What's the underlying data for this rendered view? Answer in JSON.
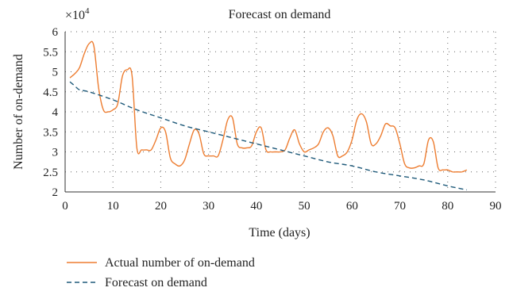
{
  "chart_data": {
    "type": "line",
    "title": "Forecast on demand",
    "xlabel": "Time (days)",
    "ylabel": "Number of on-demand",
    "y_multiplier": "×10",
    "y_multiplier_exponent": "4",
    "xlim": [
      0,
      90
    ],
    "ylim": [
      2,
      6
    ],
    "x_ticks": [
      0,
      10,
      20,
      30,
      40,
      50,
      60,
      70,
      80,
      90
    ],
    "y_ticks": [
      2,
      2.5,
      3,
      3.5,
      4,
      4.5,
      5,
      5.5,
      6
    ],
    "grid": "dotted",
    "legend_position": "bottom",
    "series": [
      {
        "name": "Actual number of on-demand",
        "color": "#ed7d31",
        "style": "solid",
        "x": [
          1,
          2,
          3,
          4,
          5,
          6,
          7,
          8,
          9,
          10,
          11,
          12,
          13,
          14,
          15,
          16,
          17,
          18,
          19,
          20,
          21,
          22,
          23,
          24,
          25,
          26,
          27,
          28,
          29,
          30,
          31,
          32,
          33,
          34,
          35,
          36,
          37,
          38,
          39,
          40,
          41,
          42,
          43,
          44,
          45,
          46,
          47,
          48,
          49,
          50,
          51,
          52,
          53,
          54,
          55,
          56,
          57,
          58,
          59,
          60,
          61,
          62,
          63,
          64,
          65,
          66,
          67,
          68,
          69,
          70,
          71,
          72,
          73,
          74,
          75,
          76,
          77,
          78,
          79,
          80,
          81,
          82,
          83,
          84
        ],
        "y": [
          4.85,
          4.95,
          5.1,
          5.45,
          5.7,
          5.65,
          4.6,
          4.05,
          4.0,
          4.05,
          4.2,
          4.9,
          5.05,
          4.9,
          3.1,
          3.05,
          3.05,
          3.05,
          3.3,
          3.6,
          3.5,
          2.85,
          2.7,
          2.65,
          2.8,
          3.2,
          3.55,
          3.45,
          2.95,
          2.9,
          2.9,
          2.9,
          3.3,
          3.8,
          3.85,
          3.2,
          3.1,
          3.1,
          3.15,
          3.5,
          3.6,
          3.05,
          3.0,
          3.0,
          3.0,
          3.05,
          3.35,
          3.55,
          3.2,
          3.0,
          3.05,
          3.1,
          3.2,
          3.5,
          3.6,
          3.4,
          2.9,
          2.9,
          3.0,
          3.3,
          3.8,
          3.95,
          3.75,
          3.2,
          3.2,
          3.4,
          3.7,
          3.65,
          3.6,
          3.2,
          2.7,
          2.6,
          2.6,
          2.65,
          2.7,
          3.3,
          3.25,
          2.6,
          2.55,
          2.55,
          2.5,
          2.5,
          2.5,
          2.55
        ]
      },
      {
        "name": "Forecast on demand",
        "color": "#1f5a7a",
        "style": "dashed",
        "x": [
          1,
          2,
          3,
          5,
          10,
          15,
          20,
          25,
          30,
          35,
          40,
          45,
          50,
          55,
          60,
          65,
          70,
          75,
          80,
          84
        ],
        "y": [
          4.75,
          4.65,
          4.55,
          4.5,
          4.3,
          4.05,
          3.85,
          3.65,
          3.5,
          3.35,
          3.2,
          3.05,
          2.9,
          2.75,
          2.65,
          2.5,
          2.4,
          2.3,
          2.15,
          2.05
        ]
      }
    ]
  }
}
